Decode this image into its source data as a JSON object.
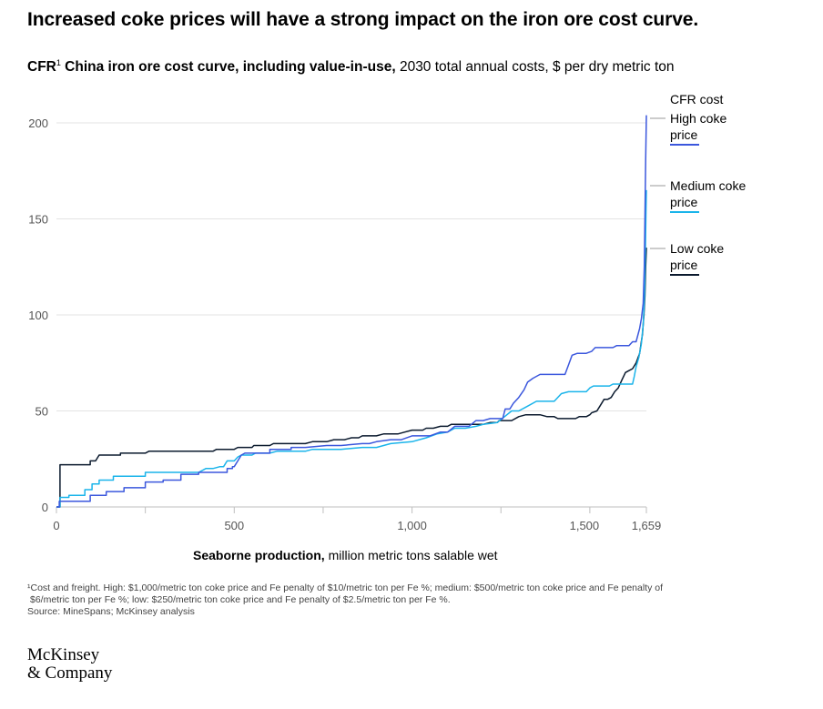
{
  "header": {
    "title": "Increased coke prices will have a strong impact on the iron ore cost curve.",
    "subtitle_bold": "CFR",
    "subtitle_sup": "1",
    "subtitle_bold2": " China iron ore cost curve, including value-in-use,",
    "subtitle_rest": " 2030 total annual costs, $ per dry metric ton"
  },
  "legend": {
    "title": "CFR cost",
    "items": [
      {
        "label": "High coke price",
        "color": "#3b57dd"
      },
      {
        "label": "Medium coke price",
        "color": "#1ab4ea"
      },
      {
        "label": "Low coke price",
        "color": "#0b1a2e"
      }
    ]
  },
  "xaxis_title": {
    "bold": "Seaborne production,",
    "rest": " million metric tons salable wet"
  },
  "footnote": {
    "line1": "¹Cost and freight. High: $1,000/metric ton coke price and Fe penalty of $10/metric ton per Fe %; medium: $500/metric ton coke price and Fe penalty of",
    "line2": "$6/metric ton per Fe %; low: $250/metric ton coke price and Fe penalty of $2.5/metric ton per Fe %.",
    "line3": "Source: MineSpans; McKinsey analysis"
  },
  "logo": {
    "line1": "McKinsey",
    "line2": "& Company"
  },
  "chart_data": {
    "type": "line",
    "title": "",
    "xlabel": "Seaborne production, million metric tons salable wet",
    "ylabel": "",
    "xlim": [
      0,
      1659
    ],
    "ylim": [
      0,
      200
    ],
    "x_ticks": [
      0,
      500,
      1000,
      1500,
      1659
    ],
    "x_tick_labels": [
      "0",
      "500",
      "1,000",
      "1,500",
      "1,659"
    ],
    "y_ticks": [
      0,
      50,
      100,
      150,
      200
    ],
    "y_tick_labels": [
      "0",
      "50",
      "100",
      "150",
      "200"
    ],
    "grid": true,
    "legend_position": "right",
    "series": [
      {
        "name": "High coke price",
        "color": "#3b57dd",
        "points": [
          [
            0,
            0
          ],
          [
            8,
            0
          ],
          [
            8,
            3
          ],
          [
            95,
            3
          ],
          [
            95,
            6
          ],
          [
            140,
            6
          ],
          [
            140,
            8
          ],
          [
            190,
            8
          ],
          [
            190,
            10
          ],
          [
            250,
            10
          ],
          [
            250,
            13
          ],
          [
            300,
            13
          ],
          [
            300,
            14
          ],
          [
            350,
            14
          ],
          [
            350,
            17
          ],
          [
            400,
            17
          ],
          [
            400,
            18
          ],
          [
            480,
            18
          ],
          [
            480,
            20
          ],
          [
            495,
            20
          ],
          [
            495,
            21
          ],
          [
            500,
            21
          ],
          [
            510,
            24
          ],
          [
            520,
            27
          ],
          [
            530,
            28
          ],
          [
            600,
            28
          ],
          [
            600,
            30
          ],
          [
            660,
            30
          ],
          [
            660,
            31
          ],
          [
            700,
            31
          ],
          [
            760,
            32
          ],
          [
            800,
            32
          ],
          [
            860,
            33
          ],
          [
            880,
            33
          ],
          [
            900,
            34
          ],
          [
            940,
            35
          ],
          [
            970,
            35
          ],
          [
            1000,
            37
          ],
          [
            1050,
            37
          ],
          [
            1080,
            39
          ],
          [
            1100,
            39
          ],
          [
            1120,
            42
          ],
          [
            1160,
            42
          ],
          [
            1180,
            45
          ],
          [
            1200,
            45
          ],
          [
            1220,
            46
          ],
          [
            1255,
            46
          ],
          [
            1262,
            51
          ],
          [
            1275,
            51
          ],
          [
            1285,
            54
          ],
          [
            1300,
            57
          ],
          [
            1315,
            61
          ],
          [
            1325,
            65
          ],
          [
            1340,
            67
          ],
          [
            1360,
            69
          ],
          [
            1400,
            69
          ],
          [
            1430,
            69
          ],
          [
            1440,
            74
          ],
          [
            1450,
            79
          ],
          [
            1465,
            80
          ],
          [
            1490,
            80
          ],
          [
            1505,
            81
          ],
          [
            1515,
            83
          ],
          [
            1565,
            83
          ],
          [
            1575,
            84
          ],
          [
            1610,
            84
          ],
          [
            1620,
            86
          ],
          [
            1630,
            86
          ],
          [
            1640,
            93
          ],
          [
            1645,
            98
          ],
          [
            1650,
            106
          ],
          [
            1653,
            125
          ],
          [
            1655,
            150
          ],
          [
            1657,
            180
          ],
          [
            1659,
            204
          ]
        ]
      },
      {
        "name": "Medium coke price",
        "color": "#1ab4ea",
        "points": [
          [
            0,
            0
          ],
          [
            10,
            0
          ],
          [
            10,
            5
          ],
          [
            35,
            5
          ],
          [
            35,
            6
          ],
          [
            80,
            6
          ],
          [
            80,
            9
          ],
          [
            100,
            9
          ],
          [
            100,
            12
          ],
          [
            120,
            12
          ],
          [
            120,
            14
          ],
          [
            160,
            14
          ],
          [
            160,
            16
          ],
          [
            250,
            16
          ],
          [
            250,
            18
          ],
          [
            400,
            18
          ],
          [
            420,
            20
          ],
          [
            440,
            20
          ],
          [
            460,
            21
          ],
          [
            470,
            21
          ],
          [
            480,
            24
          ],
          [
            500,
            24
          ],
          [
            510,
            26
          ],
          [
            520,
            27
          ],
          [
            550,
            27
          ],
          [
            560,
            28
          ],
          [
            600,
            28
          ],
          [
            620,
            29
          ],
          [
            700,
            29
          ],
          [
            720,
            30
          ],
          [
            800,
            30
          ],
          [
            860,
            31
          ],
          [
            900,
            31
          ],
          [
            940,
            33
          ],
          [
            1000,
            34
          ],
          [
            1040,
            36
          ],
          [
            1070,
            38
          ],
          [
            1100,
            39
          ],
          [
            1120,
            41
          ],
          [
            1150,
            41
          ],
          [
            1180,
            42
          ],
          [
            1200,
            43
          ],
          [
            1240,
            44
          ],
          [
            1260,
            47
          ],
          [
            1280,
            50
          ],
          [
            1300,
            50
          ],
          [
            1320,
            52
          ],
          [
            1350,
            55
          ],
          [
            1400,
            55
          ],
          [
            1420,
            59
          ],
          [
            1440,
            60
          ],
          [
            1490,
            60
          ],
          [
            1500,
            62
          ],
          [
            1510,
            63
          ],
          [
            1555,
            63
          ],
          [
            1565,
            64
          ],
          [
            1620,
            64
          ],
          [
            1625,
            68
          ],
          [
            1630,
            73
          ],
          [
            1638,
            78
          ],
          [
            1645,
            85
          ],
          [
            1650,
            95
          ],
          [
            1654,
            110
          ],
          [
            1656,
            130
          ],
          [
            1658,
            155
          ],
          [
            1659,
            165
          ]
        ]
      },
      {
        "name": "Low coke price",
        "color": "#0b1a2e",
        "points": [
          [
            0,
            0
          ],
          [
            10,
            0
          ],
          [
            10,
            22
          ],
          [
            95,
            22
          ],
          [
            95,
            24
          ],
          [
            110,
            24
          ],
          [
            120,
            27
          ],
          [
            180,
            27
          ],
          [
            180,
            28
          ],
          [
            250,
            28
          ],
          [
            260,
            29
          ],
          [
            440,
            29
          ],
          [
            450,
            30
          ],
          [
            500,
            30
          ],
          [
            510,
            31
          ],
          [
            550,
            31
          ],
          [
            555,
            32
          ],
          [
            600,
            32
          ],
          [
            610,
            33
          ],
          [
            700,
            33
          ],
          [
            720,
            34
          ],
          [
            760,
            34
          ],
          [
            780,
            35
          ],
          [
            810,
            35
          ],
          [
            830,
            36
          ],
          [
            850,
            36
          ],
          [
            860,
            37
          ],
          [
            900,
            37
          ],
          [
            920,
            38
          ],
          [
            960,
            38
          ],
          [
            980,
            39
          ],
          [
            1000,
            40
          ],
          [
            1030,
            40
          ],
          [
            1040,
            41
          ],
          [
            1060,
            41
          ],
          [
            1080,
            42
          ],
          [
            1100,
            42
          ],
          [
            1110,
            43
          ],
          [
            1200,
            43
          ],
          [
            1220,
            44
          ],
          [
            1240,
            44
          ],
          [
            1245,
            45
          ],
          [
            1280,
            45
          ],
          [
            1300,
            47
          ],
          [
            1320,
            48
          ],
          [
            1350,
            48
          ],
          [
            1360,
            48
          ],
          [
            1380,
            47
          ],
          [
            1400,
            47
          ],
          [
            1410,
            46
          ],
          [
            1460,
            46
          ],
          [
            1470,
            47
          ],
          [
            1490,
            47
          ],
          [
            1500,
            48
          ],
          [
            1505,
            49
          ],
          [
            1520,
            50
          ],
          [
            1530,
            53
          ],
          [
            1540,
            56
          ],
          [
            1550,
            56
          ],
          [
            1560,
            57
          ],
          [
            1570,
            60
          ],
          [
            1580,
            62
          ],
          [
            1590,
            66
          ],
          [
            1600,
            70
          ],
          [
            1610,
            71
          ],
          [
            1620,
            72
          ],
          [
            1630,
            75
          ],
          [
            1640,
            80
          ],
          [
            1648,
            90
          ],
          [
            1652,
            100
          ],
          [
            1655,
            110
          ],
          [
            1657,
            125
          ],
          [
            1659,
            135
          ]
        ]
      }
    ]
  }
}
